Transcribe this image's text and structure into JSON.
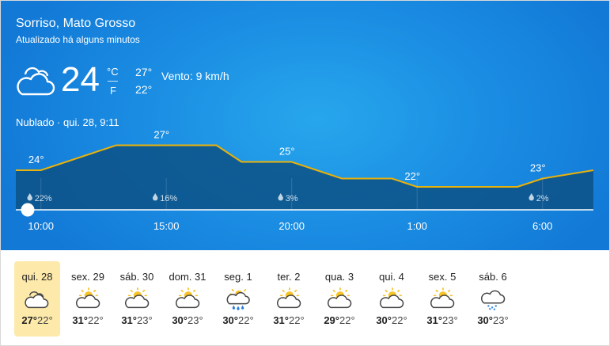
{
  "location": "Sorriso, Mato Grosso",
  "updated": "Atualizado há alguns minutos",
  "current": {
    "icon": "cloudy-icon",
    "temp": "24",
    "unit_c": "°C",
    "unit_f": "F",
    "high": "27°",
    "low": "22°",
    "wind": "Vento: 9 km/h",
    "condition": "Nublado · qui. 28, 9:11"
  },
  "chart_data": {
    "type": "area",
    "x": [
      "9:00",
      "10:00",
      "11:00",
      "12:00",
      "13:00",
      "14:00",
      "15:00",
      "16:00",
      "17:00",
      "18:00",
      "19:00",
      "20:00",
      "21:00",
      "22:00",
      "23:00",
      "0:00",
      "1:00",
      "2:00",
      "3:00",
      "4:00",
      "5:00",
      "6:00",
      "7:00"
    ],
    "values": [
      24,
      24,
      25,
      26,
      27,
      27,
      27,
      27,
      27,
      25,
      25,
      25,
      24,
      23,
      23,
      23,
      22,
      22,
      22,
      22,
      22,
      23,
      24
    ],
    "temp_labels": [
      {
        "time": "10:00",
        "text": "24°",
        "value": 24
      },
      {
        "time": "15:00",
        "text": "27°",
        "value": 27
      },
      {
        "time": "20:00",
        "text": "25°",
        "value": 25
      },
      {
        "time": "1:00",
        "text": "22°",
        "value": 22
      },
      {
        "time": "6:00",
        "text": "23°",
        "value": 23
      }
    ],
    "precip_labels": [
      {
        "time": "10:00",
        "text": "22%"
      },
      {
        "time": "15:00",
        "text": "16%"
      },
      {
        "time": "20:00",
        "text": "3%"
      },
      {
        "time": "6:00",
        "text": "2%"
      }
    ],
    "xticks": [
      "10:00",
      "15:00",
      "20:00",
      "1:00",
      "6:00"
    ],
    "slider_time": "9:00",
    "colors": {
      "line": "#e9b20a",
      "fill": "#0c4f83"
    }
  },
  "days": [
    {
      "label": "qui. 28",
      "icon": "cloudy-icon",
      "high": "27°",
      "low": "22°",
      "selected": true
    },
    {
      "label": "sex. 29",
      "icon": "partly-sunny-icon",
      "high": "31°",
      "low": "22°"
    },
    {
      "label": "sáb. 30",
      "icon": "partly-sunny-icon",
      "high": "31°",
      "low": "23°"
    },
    {
      "label": "dom. 31",
      "icon": "partly-sunny-icon",
      "high": "30°",
      "low": "23°"
    },
    {
      "label": "seg. 1",
      "icon": "sunny-rain-icon",
      "high": "30°",
      "low": "22°"
    },
    {
      "label": "ter. 2",
      "icon": "partly-sunny-icon",
      "high": "31°",
      "low": "22°"
    },
    {
      "label": "qua. 3",
      "icon": "partly-sunny-icon",
      "high": "29°",
      "low": "22°"
    },
    {
      "label": "qui. 4",
      "icon": "partly-sunny-icon",
      "high": "30°",
      "low": "22°"
    },
    {
      "label": "sex. 5",
      "icon": "partly-sunny-icon",
      "high": "31°",
      "low": "23°"
    },
    {
      "label": "sáb. 6",
      "icon": "cloud-drizzle-icon",
      "high": "30°",
      "low": "23°"
    }
  ]
}
